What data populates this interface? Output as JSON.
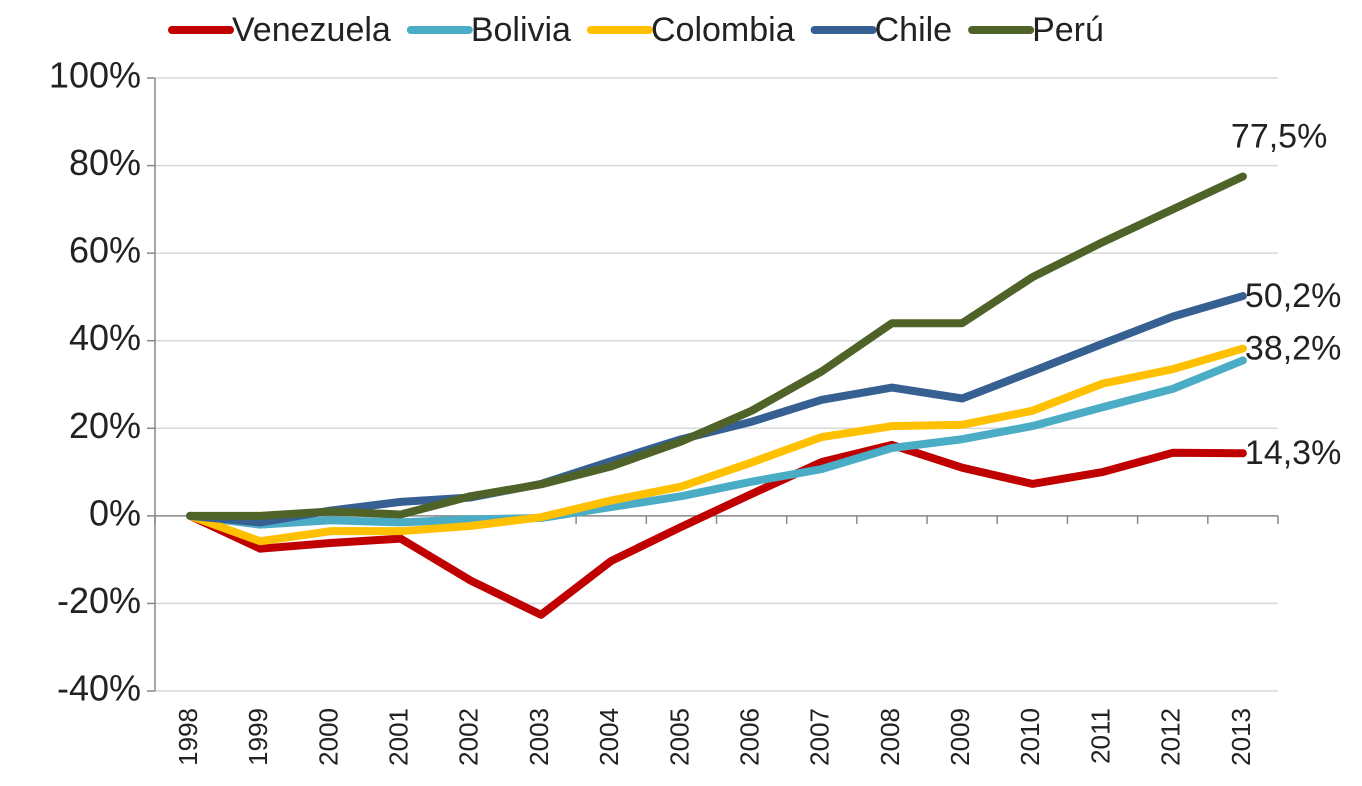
{
  "chart_data": {
    "type": "line",
    "categories": [
      "1998",
      "1999",
      "2000",
      "2001",
      "2002",
      "2003",
      "2004",
      "2005",
      "2006",
      "2007",
      "2008",
      "2009",
      "2010",
      "2011",
      "2012",
      "2013"
    ],
    "series": [
      {
        "name": "Venezuela",
        "color": "#c00000",
        "values": [
          0,
          -7.5,
          -6.2,
          -5.2,
          -14.8,
          -22.6,
          -10.3,
          -2.5,
          5.0,
          12.3,
          16.2,
          11.0,
          7.3,
          10.0,
          14.4,
          14.3
        ],
        "value_labels": [
          null,
          null,
          null,
          null,
          null,
          null,
          null,
          null,
          null,
          null,
          null,
          null,
          null,
          null,
          null,
          "14,3%"
        ]
      },
      {
        "name": "Bolivia",
        "color": "#4bacc6",
        "values": [
          0,
          -2.0,
          -1.0,
          -1.5,
          -0.8,
          -0.5,
          2.0,
          4.5,
          7.8,
          10.7,
          15.5,
          17.5,
          20.5,
          24.8,
          29.0,
          35.5
        ]
      },
      {
        "name": "Colombia",
        "color": "#ffc000",
        "values": [
          0,
          -5.8,
          -3.5,
          -3.5,
          -2.3,
          -0.3,
          3.5,
          6.7,
          12.2,
          18.0,
          20.5,
          20.8,
          24.0,
          30.2,
          33.5,
          38.2
        ],
        "value_labels": [
          null,
          null,
          null,
          null,
          null,
          null,
          null,
          null,
          null,
          null,
          null,
          null,
          null,
          null,
          null,
          "38,2%"
        ]
      },
      {
        "name": "Chile",
        "color": "#376092",
        "values": [
          0,
          -1.5,
          1.2,
          3.2,
          4.2,
          7.3,
          12.5,
          17.5,
          21.5,
          26.5,
          29.3,
          26.8,
          33.0,
          39.3,
          45.5,
          50.2
        ],
        "value_labels": [
          null,
          null,
          null,
          null,
          null,
          null,
          null,
          null,
          null,
          null,
          null,
          null,
          null,
          null,
          null,
          "50,2%"
        ]
      },
      {
        "name": "Perú",
        "color": "#4f6228",
        "values": [
          0,
          0,
          1.0,
          0.3,
          4.5,
          7.2,
          11.3,
          17.0,
          24.0,
          33.0,
          44.0,
          44.0,
          54.5,
          62.5,
          70.0,
          77.5
        ],
        "value_labels": [
          null,
          null,
          null,
          null,
          null,
          null,
          null,
          null,
          null,
          null,
          null,
          null,
          null,
          null,
          null,
          "77,5%"
        ]
      }
    ],
    "ylim": [
      -40,
      100
    ],
    "yticks": [
      {
        "value": -40,
        "label": "-40%"
      },
      {
        "value": -20,
        "label": "-20%"
      },
      {
        "value": 0,
        "label": "0%"
      },
      {
        "value": 20,
        "label": "20%"
      },
      {
        "value": 40,
        "label": "40%"
      },
      {
        "value": 60,
        "label": "60%"
      },
      {
        "value": 80,
        "label": "80%"
      },
      {
        "value": 100,
        "label": "100%"
      }
    ],
    "grid": true,
    "legend": "top"
  }
}
